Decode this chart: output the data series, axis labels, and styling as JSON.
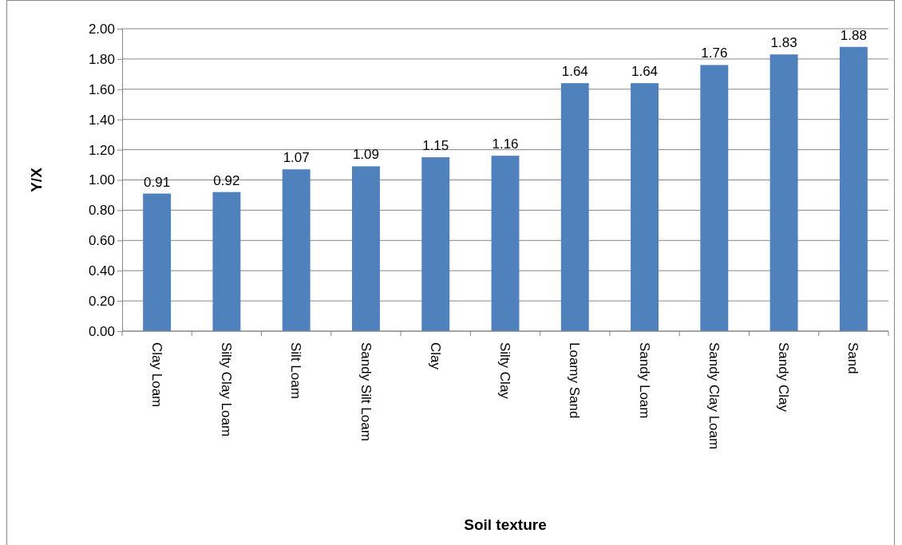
{
  "chart_data": {
    "type": "bar",
    "xlabel": "Soil texture",
    "ylabel": "Y/X",
    "categories": [
      "Clay Loam",
      "Silty Clay Loam",
      "Silt Loam",
      "Sandy Silt Loam",
      "Clay",
      "Silty Clay",
      "Loamy Sand",
      "Sandy Loam",
      "Sandy Clay Loam",
      "Sandy Clay",
      "Sand"
    ],
    "values": [
      0.91,
      0.92,
      1.07,
      1.09,
      1.15,
      1.16,
      1.64,
      1.64,
      1.76,
      1.83,
      1.88
    ],
    "color": "#4f81bd",
    "ylim": [
      0,
      2
    ],
    "yticks": [
      {
        "value": 0,
        "label": "0.00"
      },
      {
        "value": 0.2,
        "label": "0.20"
      },
      {
        "value": 0.4,
        "label": "0.40"
      },
      {
        "value": 0.6,
        "label": "0.60"
      },
      {
        "value": 0.8,
        "label": "0.80"
      },
      {
        "value": 1,
        "label": "1.00"
      },
      {
        "value": 1.2,
        "label": "1.20"
      },
      {
        "value": 1.4,
        "label": "1.40"
      },
      {
        "value": 1.6,
        "label": "1.60"
      },
      {
        "value": 1.8,
        "label": "1.80"
      },
      {
        "value": 2,
        "label": "2.00"
      }
    ],
    "grid": "y",
    "data_labels": true
  }
}
